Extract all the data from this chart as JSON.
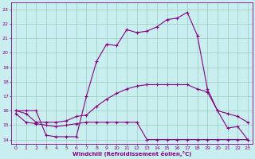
{
  "xlabel": "Windchill (Refroidissement éolien,°C)",
  "bg_color": "#c8eef0",
  "line_color": "#880088",
  "grid_color": "#99ccbb",
  "xlim": [
    -0.5,
    23.5
  ],
  "ylim": [
    13.7,
    23.5
  ],
  "yticks": [
    14,
    15,
    16,
    17,
    18,
    19,
    20,
    21,
    22,
    23
  ],
  "xticks": [
    0,
    1,
    2,
    3,
    4,
    5,
    6,
    7,
    8,
    9,
    10,
    11,
    12,
    13,
    14,
    15,
    16,
    17,
    18,
    19,
    20,
    21,
    22,
    23
  ],
  "line1_x": [
    0,
    1,
    2,
    3,
    4,
    5,
    6,
    7,
    8,
    9,
    10,
    11,
    12,
    13,
    14,
    15,
    16,
    17,
    18,
    19,
    20,
    21,
    22,
    23
  ],
  "line1_y": [
    16.0,
    16.0,
    16.0,
    14.3,
    14.2,
    14.2,
    14.2,
    17.0,
    19.4,
    20.6,
    20.5,
    21.6,
    21.4,
    21.5,
    21.8,
    22.3,
    22.4,
    22.8,
    21.2,
    17.5,
    16.0,
    14.8,
    14.9,
    14.0
  ],
  "line2_x": [
    0,
    1,
    2,
    3,
    4,
    5,
    6,
    7,
    8,
    9,
    10,
    11,
    12,
    13,
    14,
    15,
    16,
    17,
    18,
    19,
    20,
    21,
    22,
    23
  ],
  "line2_y": [
    16.0,
    15.8,
    15.2,
    15.2,
    15.2,
    15.3,
    15.6,
    15.7,
    16.3,
    16.8,
    17.2,
    17.5,
    17.7,
    17.8,
    17.8,
    17.8,
    17.8,
    17.8,
    17.5,
    17.3,
    16.0,
    15.8,
    15.6,
    15.2
  ],
  "line3_x": [
    0,
    1,
    2,
    3,
    4,
    5,
    6,
    7,
    8,
    9,
    10,
    11,
    12,
    13,
    14,
    15,
    16,
    17,
    18,
    19,
    20,
    21,
    22,
    23
  ],
  "line3_y": [
    15.8,
    15.2,
    15.1,
    15.0,
    14.9,
    15.0,
    15.1,
    15.2,
    15.2,
    15.2,
    15.2,
    15.2,
    15.2,
    14.0,
    14.0,
    14.0,
    14.0,
    14.0,
    14.0,
    14.0,
    14.0,
    14.0,
    14.0,
    14.0
  ]
}
